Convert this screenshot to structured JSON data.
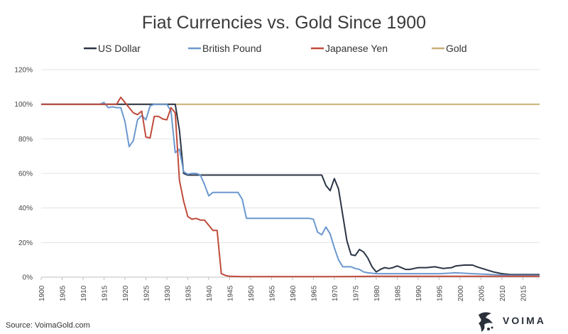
{
  "chart_data": {
    "type": "line",
    "title": "Fiat Currencies vs. Gold Since 1900",
    "xlabel": "",
    "ylabel": "",
    "xlim": [
      1900,
      2019
    ],
    "ylim": [
      0,
      120
    ],
    "y_ticks": [
      "0%",
      "20%",
      "40%",
      "60%",
      "80%",
      "100%",
      "120%"
    ],
    "x_ticks": [
      "1900",
      "1905",
      "1910",
      "1915",
      "1920",
      "1925",
      "1930",
      "1935",
      "1940",
      "1945",
      "1950",
      "1955",
      "1960",
      "1965",
      "1970",
      "1975",
      "1980",
      "1985",
      "1990",
      "1995",
      "2000",
      "2005",
      "2010",
      "2015"
    ],
    "grid": "horizontal",
    "legend_position": "top",
    "series": [
      {
        "name": "US Dollar",
        "color": "#2b3546",
        "points": [
          [
            1900,
            100
          ],
          [
            1932,
            100
          ],
          [
            1933,
            85
          ],
          [
            1934,
            60
          ],
          [
            1935,
            59
          ],
          [
            1940,
            59
          ],
          [
            1950,
            59
          ],
          [
            1960,
            59
          ],
          [
            1967,
            59
          ],
          [
            1968,
            53
          ],
          [
            1969,
            50
          ],
          [
            1970,
            57
          ],
          [
            1971,
            51
          ],
          [
            1972,
            36
          ],
          [
            1973,
            21
          ],
          [
            1974,
            13
          ],
          [
            1975,
            12.5
          ],
          [
            1976,
            16
          ],
          [
            1977,
            14.5
          ],
          [
            1978,
            11
          ],
          [
            1979,
            6
          ],
          [
            1980,
            3
          ],
          [
            1981,
            4.5
          ],
          [
            1982,
            5.5
          ],
          [
            1983,
            5
          ],
          [
            1984,
            5.5
          ],
          [
            1985,
            6.5
          ],
          [
            1986,
            5.5
          ],
          [
            1987,
            4.5
          ],
          [
            1988,
            4.5
          ],
          [
            1989,
            5
          ],
          [
            1990,
            5.5
          ],
          [
            1992,
            5.5
          ],
          [
            1994,
            6
          ],
          [
            1996,
            5
          ],
          [
            1998,
            5.5
          ],
          [
            1999,
            6.5
          ],
          [
            2001,
            7
          ],
          [
            2003,
            7
          ],
          [
            2004,
            6
          ],
          [
            2006,
            4.5
          ],
          [
            2008,
            3
          ],
          [
            2010,
            2
          ],
          [
            2012,
            1.5
          ],
          [
            2014,
            1.5
          ],
          [
            2016,
            1.5
          ],
          [
            2019,
            1.5
          ]
        ]
      },
      {
        "name": "British Pound",
        "color": "#6b98cf",
        "points": [
          [
            1900,
            100
          ],
          [
            1914,
            100
          ],
          [
            1915,
            101
          ],
          [
            1916,
            98
          ],
          [
            1917,
            98.5
          ],
          [
            1918,
            98
          ],
          [
            1919,
            98
          ],
          [
            1920,
            90
          ],
          [
            1921,
            75.5
          ],
          [
            1922,
            79
          ],
          [
            1923,
            91
          ],
          [
            1924,
            93.5
          ],
          [
            1925,
            91
          ],
          [
            1926,
            99
          ],
          [
            1927,
            100
          ],
          [
            1930,
            100
          ],
          [
            1931,
            96
          ],
          [
            1932,
            72
          ],
          [
            1933,
            74
          ],
          [
            1934,
            61
          ],
          [
            1935,
            59.5
          ],
          [
            1936,
            60
          ],
          [
            1937,
            60
          ],
          [
            1938,
            59
          ],
          [
            1939,
            53.5
          ],
          [
            1940,
            47
          ],
          [
            1941,
            49
          ],
          [
            1943,
            49
          ],
          [
            1945,
            49
          ],
          [
            1947,
            49
          ],
          [
            1948,
            45
          ],
          [
            1949,
            34
          ],
          [
            1950,
            34
          ],
          [
            1952,
            34
          ],
          [
            1954,
            34
          ],
          [
            1956,
            34
          ],
          [
            1958,
            34
          ],
          [
            1960,
            34
          ],
          [
            1962,
            34
          ],
          [
            1964,
            34
          ],
          [
            1965,
            33.5
          ],
          [
            1966,
            26
          ],
          [
            1967,
            24.5
          ],
          [
            1968,
            29
          ],
          [
            1969,
            25
          ],
          [
            1970,
            17
          ],
          [
            1971,
            10
          ],
          [
            1972,
            6
          ],
          [
            1973,
            6
          ],
          [
            1974,
            6
          ],
          [
            1975,
            5
          ],
          [
            1976,
            4.5
          ],
          [
            1977,
            3
          ],
          [
            1978,
            2.5
          ],
          [
            1980,
            2
          ],
          [
            1985,
            2
          ],
          [
            1990,
            2
          ],
          [
            1995,
            2
          ],
          [
            1999,
            2.5
          ],
          [
            2003,
            2
          ],
          [
            2008,
            1.5
          ],
          [
            2012,
            1
          ],
          [
            2016,
            1
          ],
          [
            2019,
            1
          ]
        ]
      },
      {
        "name": "Japanese Yen",
        "color": "#bf4b3c",
        "points": [
          [
            1900,
            100
          ],
          [
            1918,
            100
          ],
          [
            1919,
            104
          ],
          [
            1920,
            101
          ],
          [
            1921,
            98
          ],
          [
            1922,
            95
          ],
          [
            1923,
            94
          ],
          [
            1924,
            96
          ],
          [
            1925,
            81
          ],
          [
            1926,
            80.5
          ],
          [
            1927,
            93
          ],
          [
            1928,
            93
          ],
          [
            1929,
            91.5
          ],
          [
            1930,
            91
          ],
          [
            1931,
            98
          ],
          [
            1932,
            95
          ],
          [
            1933,
            56
          ],
          [
            1934,
            44
          ],
          [
            1935,
            35
          ],
          [
            1936,
            33.5
          ],
          [
            1937,
            34
          ],
          [
            1938,
            33
          ],
          [
            1939,
            33
          ],
          [
            1940,
            30
          ],
          [
            1941,
            27
          ],
          [
            1942,
            27
          ],
          [
            1943,
            2
          ],
          [
            1944,
            1
          ],
          [
            1945,
            0.5
          ],
          [
            1948,
            0.3
          ],
          [
            1950,
            0.3
          ],
          [
            1970,
            0.3
          ],
          [
            1980,
            0.5
          ],
          [
            1990,
            0.5
          ],
          [
            2000,
            0.5
          ],
          [
            2010,
            0.5
          ],
          [
            2019,
            0.5
          ]
        ]
      },
      {
        "name": "Gold",
        "color": "#c8ae76",
        "points": [
          [
            1900,
            100
          ],
          [
            2019,
            100
          ]
        ]
      }
    ]
  },
  "footer": {
    "source": "Source: VoimaGold.com",
    "brand": "VOIMA"
  }
}
